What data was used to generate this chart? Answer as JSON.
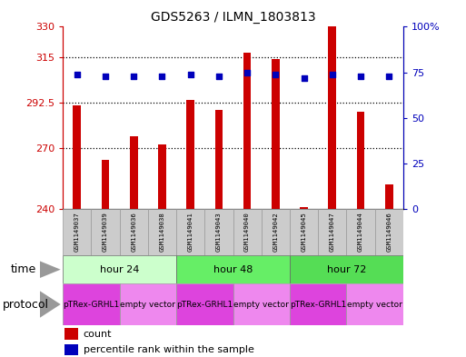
{
  "title": "GDS5263 / ILMN_1803813",
  "samples": [
    "GSM1149037",
    "GSM1149039",
    "GSM1149036",
    "GSM1149038",
    "GSM1149041",
    "GSM1149043",
    "GSM1149040",
    "GSM1149042",
    "GSM1149045",
    "GSM1149047",
    "GSM1149044",
    "GSM1149046"
  ],
  "counts": [
    291,
    264,
    276,
    272,
    294,
    289,
    317,
    314,
    241,
    330,
    288,
    252
  ],
  "percentiles": [
    74,
    73,
    73,
    73,
    74,
    73,
    75,
    74,
    72,
    74,
    73,
    73
  ],
  "ymin": 240,
  "ymax": 330,
  "yticks": [
    240,
    270,
    292.5,
    315,
    330
  ],
  "ytick_labels": [
    "240",
    "270",
    "292.5",
    "315",
    "330"
  ],
  "y2min": 0,
  "y2max": 100,
  "y2ticks": [
    0,
    25,
    50,
    75,
    100
  ],
  "y2tick_labels": [
    "0",
    "25",
    "50",
    "75",
    "100%"
  ],
  "hlines": [
    270,
    292.5,
    315
  ],
  "time_groups": [
    {
      "label": "hour 24",
      "start": 0,
      "end": 4,
      "color": "#ccffcc"
    },
    {
      "label": "hour 48",
      "start": 4,
      "end": 8,
      "color": "#66ee66"
    },
    {
      "label": "hour 72",
      "start": 8,
      "end": 12,
      "color": "#55dd55"
    }
  ],
  "protocol_groups": [
    {
      "label": "pTRex-GRHL1",
      "start": 0,
      "end": 2,
      "color": "#dd44dd"
    },
    {
      "label": "empty vector",
      "start": 2,
      "end": 4,
      "color": "#ee88ee"
    },
    {
      "label": "pTRex-GRHL1",
      "start": 4,
      "end": 6,
      "color": "#dd44dd"
    },
    {
      "label": "empty vector",
      "start": 6,
      "end": 8,
      "color": "#ee88ee"
    },
    {
      "label": "pTRex-GRHL1",
      "start": 8,
      "end": 10,
      "color": "#dd44dd"
    },
    {
      "label": "empty vector",
      "start": 10,
      "end": 12,
      "color": "#ee88ee"
    }
  ],
  "bar_color": "#cc0000",
  "dot_color": "#0000bb",
  "bg_color": "#ffffff",
  "left_axis_color": "#cc0000",
  "right_axis_color": "#0000bb"
}
